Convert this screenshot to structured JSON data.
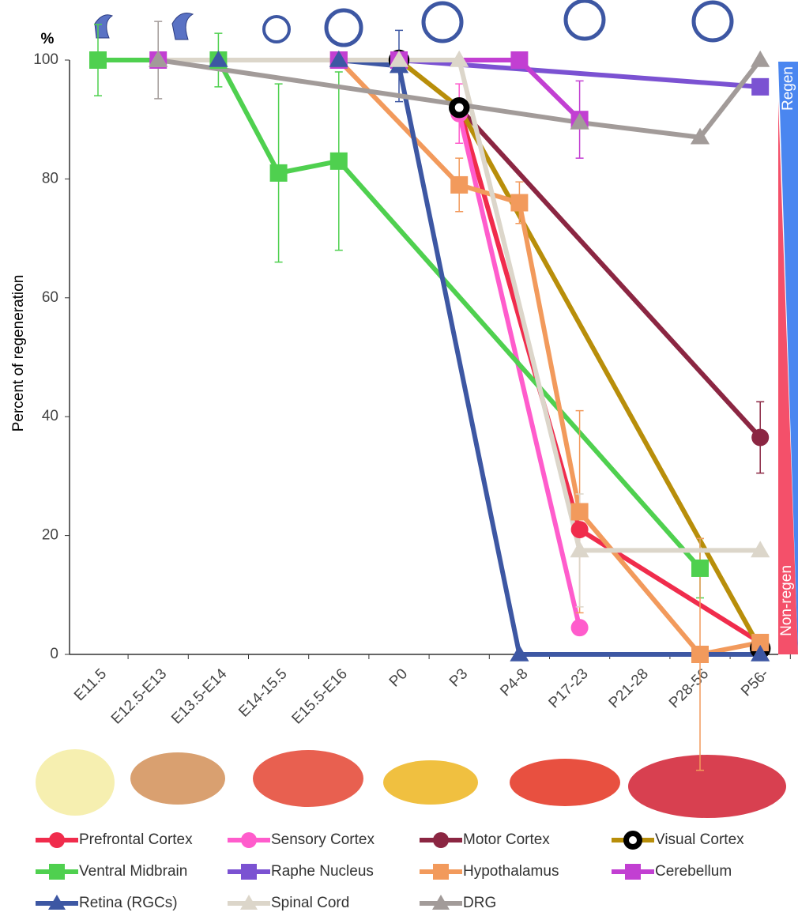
{
  "chart_data": {
    "type": "line",
    "y_label": "Percent of regeneration",
    "y_unit": "%",
    "annotations": [
      "Regen",
      "Non-regen"
    ],
    "categories": [
      "E11.5",
      "E12.5-E13",
      "E13.5-E14",
      "E14-15.5",
      "E15.5-E16",
      "P0",
      "P3",
      "P4-8",
      "P17-23",
      "P21-28",
      "P28-56",
      "P56-"
    ],
    "ylim": [
      0,
      100
    ],
    "yticks": [
      0,
      20,
      40,
      60,
      80,
      100
    ],
    "series": [
      {
        "name": "Prefrontal Cortex",
        "color": "#f02c4c",
        "marker": "circle",
        "values": [
          null,
          null,
          null,
          null,
          null,
          null,
          92,
          null,
          21,
          null,
          null,
          2
        ],
        "errors": [
          null,
          null,
          null,
          null,
          null,
          null,
          null,
          null,
          null,
          null,
          null,
          null
        ]
      },
      {
        "name": "Sensory Cortex",
        "color": "#ff5ccc",
        "marker": "circle",
        "values": [
          null,
          null,
          null,
          null,
          null,
          null,
          91,
          null,
          4.5,
          null,
          null,
          null
        ],
        "errors": [
          null,
          null,
          null,
          null,
          null,
          null,
          5,
          null,
          null,
          null,
          null,
          null
        ]
      },
      {
        "name": "Motor Cortex",
        "color": "#8b2642",
        "marker": "circle",
        "values": [
          null,
          null,
          null,
          null,
          null,
          null,
          92,
          null,
          null,
          null,
          null,
          36.5
        ],
        "errors": [
          null,
          null,
          null,
          null,
          null,
          null,
          null,
          null,
          null,
          null,
          null,
          6
        ]
      },
      {
        "name": "Visual Cortex",
        "color": "#b88e0a",
        "marker": "ring",
        "values": [
          null,
          null,
          null,
          null,
          null,
          100,
          92,
          null,
          null,
          null,
          null,
          1
        ],
        "errors": [
          null,
          null,
          null,
          null,
          null,
          null,
          null,
          null,
          null,
          null,
          null,
          null
        ]
      },
      {
        "name": "Ventral Midbrain",
        "color": "#4fd04f",
        "marker": "square",
        "values": [
          100,
          null,
          100,
          81,
          83,
          null,
          null,
          null,
          null,
          null,
          14.5,
          null
        ],
        "errors": [
          6,
          null,
          4.5,
          15,
          15,
          null,
          null,
          null,
          null,
          null,
          5,
          null
        ]
      },
      {
        "name": "Raphe Nucleus",
        "color": "#7b52d2",
        "marker": "square",
        "values": [
          null,
          null,
          null,
          null,
          100,
          100,
          null,
          null,
          null,
          null,
          null,
          95.5
        ],
        "errors": [
          null,
          null,
          null,
          null,
          null,
          null,
          null,
          null,
          null,
          null,
          null,
          null
        ]
      },
      {
        "name": "Hypothalamus",
        "color": "#f29a5c",
        "marker": "square",
        "values": [
          null,
          null,
          null,
          null,
          100,
          null,
          79,
          76,
          24,
          null,
          0,
          2
        ],
        "errors": [
          null,
          null,
          null,
          null,
          null,
          null,
          4.5,
          3.5,
          17,
          null,
          19.5,
          null
        ]
      },
      {
        "name": "Cerebellum",
        "color": "#c23fd2",
        "marker": "square",
        "values": [
          null,
          100,
          null,
          null,
          100,
          100,
          null,
          100,
          90,
          null,
          null,
          null
        ],
        "errors": [
          null,
          null,
          null,
          null,
          null,
          null,
          null,
          null,
          6.5,
          null,
          null,
          null
        ]
      },
      {
        "name": "Retina (RGCs)",
        "color": "#3d57a3",
        "marker": "triangle",
        "values": [
          null,
          null,
          100,
          null,
          100,
          99,
          null,
          0,
          null,
          null,
          null,
          0
        ],
        "errors": [
          null,
          null,
          null,
          null,
          null,
          6,
          null,
          null,
          null,
          null,
          null,
          null
        ]
      },
      {
        "name": "Spinal Cord",
        "color": "#dcd6ca",
        "marker": "triangle",
        "values": [
          null,
          100,
          null,
          null,
          null,
          100,
          100,
          null,
          17.5,
          null,
          null,
          17.5
        ],
        "errors": [
          null,
          null,
          null,
          null,
          null,
          null,
          null,
          null,
          9.5,
          null,
          null,
          null
        ]
      },
      {
        "name": "DRG",
        "color": "#a29b99",
        "marker": "triangle",
        "values": [
          null,
          100,
          null,
          null,
          null,
          null,
          null,
          null,
          89.5,
          null,
          87,
          100
        ],
        "errors": [
          null,
          6.5,
          null,
          null,
          null,
          null,
          null,
          null,
          null,
          null,
          null,
          null
        ]
      }
    ]
  }
}
